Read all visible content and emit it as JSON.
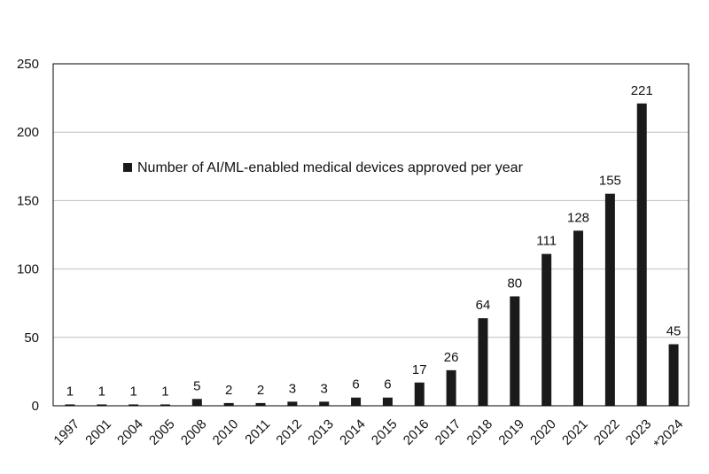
{
  "chart_data": {
    "type": "bar",
    "title": "",
    "xlabel": "",
    "ylabel": "",
    "ylim": [
      0,
      250
    ],
    "yticks": [
      0,
      50,
      100,
      150,
      200,
      250
    ],
    "grid": true,
    "legend_position": "top-left",
    "categories": [
      "1997",
      "2001",
      "2004",
      "2005",
      "2008",
      "2010",
      "2011",
      "2012",
      "2013",
      "2014",
      "2015",
      "2016",
      "2017",
      "2018",
      "2019",
      "2020",
      "2021",
      "2022",
      "2023",
      "*2024"
    ],
    "series": [
      {
        "name": "Number of AI/ML-enabled medical devices approved per year",
        "color": "#1a1a1a",
        "values": [
          1,
          1,
          1,
          1,
          5,
          2,
          2,
          3,
          3,
          6,
          6,
          17,
          26,
          64,
          80,
          111,
          128,
          155,
          221,
          45
        ]
      }
    ]
  }
}
